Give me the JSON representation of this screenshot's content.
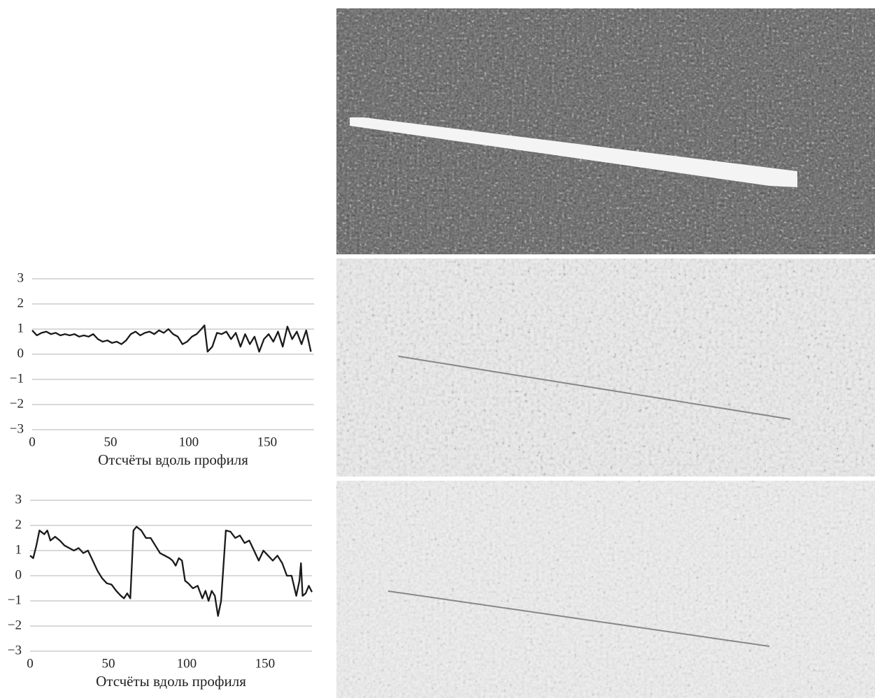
{
  "chart_data": [
    {
      "type": "line",
      "x_label": "Отсчёты вдоль профиля",
      "x": [
        0,
        3,
        6,
        9,
        12,
        15,
        18,
        21,
        24,
        27,
        30,
        33,
        36,
        39,
        42,
        45,
        48,
        51,
        54,
        57,
        60,
        63,
        66,
        69,
        72,
        75,
        78,
        81,
        84,
        87,
        90,
        93,
        96,
        99,
        102,
        105,
        108,
        110,
        112,
        115,
        118,
        121,
        124,
        127,
        130,
        133,
        136,
        139,
        142,
        145,
        148,
        151,
        154,
        157,
        160,
        163,
        166,
        169,
        172,
        175,
        178
      ],
      "series": [
        {
          "color": "#1a1a1a",
          "values": [
            0.95,
            0.75,
            0.85,
            0.9,
            0.8,
            0.85,
            0.75,
            0.8,
            0.75,
            0.8,
            0.7,
            0.75,
            0.7,
            0.8,
            0.6,
            0.5,
            0.55,
            0.45,
            0.5,
            0.4,
            0.55,
            0.8,
            0.9,
            0.75,
            0.85,
            0.9,
            0.8,
            0.95,
            0.85,
            1.0,
            0.8,
            0.7,
            0.4,
            0.5,
            0.7,
            0.8,
            1.0,
            1.15,
            0.1,
            0.3,
            0.85,
            0.8,
            0.9,
            0.6,
            0.85,
            0.3,
            0.8,
            0.4,
            0.7,
            0.1,
            0.6,
            0.8,
            0.5,
            0.9,
            0.3,
            1.1,
            0.6,
            0.9,
            0.4,
            0.95,
            0.1
          ]
        }
      ],
      "xlim": [
        0,
        180
      ],
      "xticks": [
        0,
        50,
        100,
        150
      ],
      "ylim": [
        -3,
        3
      ],
      "yticks": [
        {
          "value": -3,
          "label": "−3"
        },
        {
          "value": -2,
          "label": "−2"
        },
        {
          "value": -1,
          "label": "−1"
        },
        0,
        1,
        2,
        3
      ],
      "grid": true
    },
    {
      "type": "line",
      "x_label": "Отсчёты вдоль профиля",
      "x": [
        0,
        2,
        4,
        6,
        9,
        11,
        13,
        16,
        19,
        22,
        25,
        28,
        31,
        34,
        37,
        40,
        43,
        46,
        49,
        52,
        55,
        58,
        60,
        62,
        64,
        66,
        68,
        71,
        74,
        77,
        80,
        83,
        86,
        89,
        91,
        93,
        95,
        97,
        99,
        101,
        104,
        107,
        110,
        112,
        114,
        116,
        118,
        120,
        122,
        125,
        128,
        131,
        134,
        137,
        140,
        143,
        146,
        149,
        152,
        155,
        158,
        161,
        164,
        167,
        170,
        172,
        173,
        174,
        176,
        178,
        180
      ],
      "series": [
        {
          "color": "#1a1a1a",
          "values": [
            0.8,
            0.7,
            1.2,
            1.8,
            1.65,
            1.8,
            1.4,
            1.55,
            1.4,
            1.2,
            1.1,
            1.0,
            1.1,
            0.9,
            1.0,
            0.6,
            0.2,
            -0.1,
            -0.3,
            -0.35,
            -0.6,
            -0.8,
            -0.9,
            -0.7,
            -0.9,
            1.8,
            1.95,
            1.8,
            1.5,
            1.5,
            1.2,
            0.9,
            0.8,
            0.7,
            0.6,
            0.4,
            0.7,
            0.6,
            -0.2,
            -0.3,
            -0.5,
            -0.4,
            -0.9,
            -0.6,
            -1.0,
            -0.6,
            -0.8,
            -1.6,
            -1.0,
            1.8,
            1.75,
            1.5,
            1.6,
            1.3,
            1.4,
            1.0,
            0.6,
            1.0,
            0.8,
            0.6,
            0.8,
            0.5,
            0.0,
            0.0,
            -0.8,
            -0.2,
            0.5,
            -0.8,
            -0.7,
            -0.4,
            -0.65
          ]
        }
      ],
      "xlim": [
        0,
        180
      ],
      "xticks": [
        0,
        50,
        100,
        150
      ],
      "ylim": [
        -3,
        3
      ],
      "yticks": [
        {
          "value": -3,
          "label": "−3"
        },
        {
          "value": -2,
          "label": "−2"
        },
        {
          "value": -1,
          "label": "−1"
        },
        0,
        1,
        2,
        3
      ],
      "grid": true
    }
  ]
}
